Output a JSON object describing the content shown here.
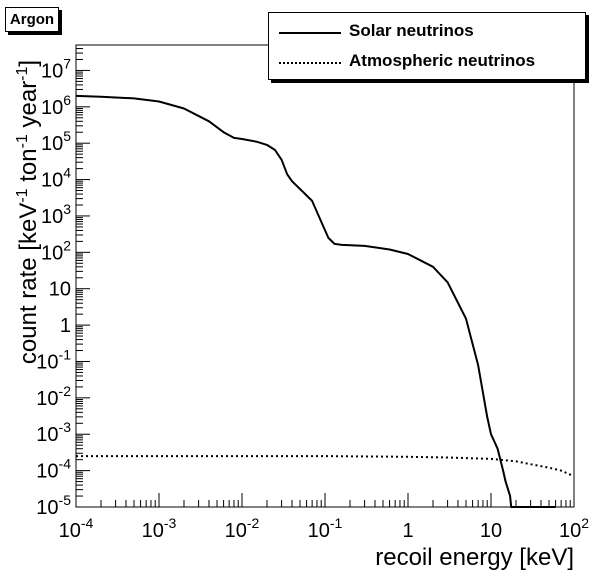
{
  "chart_data": {
    "type": "line",
    "title": "Argon",
    "xlabel": "recoil energy [keV]",
    "ylabel": "count rate [keV-1 ton-1 year-1]",
    "x_scale": "log",
    "y_scale": "log",
    "xlim": [
      0.0001,
      100
    ],
    "ylim": [
      1e-05,
      50000000
    ],
    "x_ticks": [
      "10-4",
      "10-3",
      "10-2",
      "10-1",
      "1",
      "10",
      "102"
    ],
    "y_ticks": [
      "10-5",
      "10-4",
      "10-3",
      "10-2",
      "10-1",
      "1",
      "10",
      "102",
      "103",
      "104",
      "105",
      "106",
      "107"
    ],
    "legend_position": "top-right",
    "grid": false,
    "series": [
      {
        "name": "Solar neutrinos",
        "style": "solid",
        "x": [
          0.0001,
          0.0002,
          0.0005,
          0.001,
          0.002,
          0.004,
          0.006,
          0.008,
          0.01,
          0.015,
          0.02,
          0.025,
          0.03,
          0.035,
          0.04,
          0.05,
          0.07,
          0.09,
          0.11,
          0.13,
          0.16,
          0.3,
          0.6,
          1,
          2,
          3,
          5,
          7,
          9,
          10,
          12,
          14,
          15,
          17,
          17.5,
          20,
          60
        ],
        "y": [
          2000000,
          1900000,
          1700000,
          1400000,
          900000,
          400000,
          200000,
          140000,
          130000,
          110000,
          90000,
          65000,
          35000,
          14000,
          9000,
          5500,
          2600,
          700,
          250,
          170,
          160,
          150,
          120,
          90,
          40,
          15,
          1.5,
          0.08,
          0.003,
          0.001,
          0.0004,
          0.0001,
          5e-05,
          2e-05,
          1e-05,
          1e-05,
          1e-05
        ]
      },
      {
        "name": "Atmospheric neutrinos",
        "style": "dotted",
        "x": [
          0.0001,
          0.001,
          0.01,
          0.1,
          1,
          3,
          10,
          20,
          30,
          50,
          70,
          100
        ],
        "y": [
          0.00025,
          0.00025,
          0.00025,
          0.00025,
          0.00024,
          0.00023,
          0.00021,
          0.00018,
          0.00015,
          0.00012,
          0.0001,
          7e-05
        ]
      }
    ]
  }
}
